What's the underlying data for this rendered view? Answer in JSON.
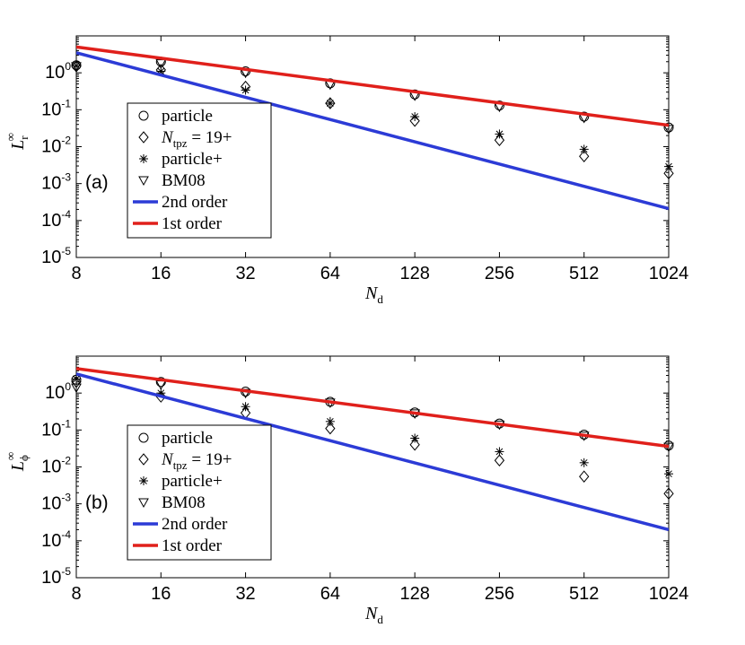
{
  "chart_data": [
    {
      "type": "scatter",
      "panel_label": "(a)",
      "xlabel": {
        "main": "N",
        "sub": "d"
      },
      "ylabel": {
        "main": "L",
        "sub": "r",
        "sup": "∞"
      },
      "x_scale": "log2",
      "y_scale": "log10",
      "xlim": [
        8,
        1024
      ],
      "ylim_exp": [
        -5,
        1
      ],
      "x_ticks": [
        "8",
        "16",
        "32",
        "64",
        "128",
        "256",
        "512",
        "1024"
      ],
      "y_ticks": [
        {
          "base": "10",
          "exp": "-5"
        },
        {
          "base": "10",
          "exp": "-4"
        },
        {
          "base": "10",
          "exp": "-3"
        },
        {
          "base": "10",
          "exp": "-2"
        },
        {
          "base": "10",
          "exp": "-1"
        },
        {
          "base": "10",
          "exp": "0"
        }
      ],
      "legend_position": "lower-left",
      "series": [
        {
          "name": "particle",
          "marker": "circle",
          "x": [
            8,
            16,
            32,
            64,
            128,
            256,
            512,
            1024
          ],
          "y": [
            1.6,
            2.0,
            1.1,
            0.52,
            0.26,
            0.13,
            0.065,
            0.033
          ]
        },
        {
          "name_parts": {
            "pre": "N",
            "sub": "tpz",
            "post": " = 19+"
          },
          "marker": "diamond",
          "x": [
            8,
            16,
            32,
            64,
            128,
            256,
            512,
            1024
          ],
          "y": [
            1.5,
            1.2,
            0.42,
            0.15,
            0.05,
            0.015,
            0.0055,
            0.0019
          ]
        },
        {
          "name": "particle+",
          "marker": "asterisk",
          "x": [
            8,
            16,
            32,
            64,
            128,
            256,
            512,
            1024
          ],
          "y": [
            1.55,
            1.1,
            0.34,
            0.15,
            0.065,
            0.022,
            0.0085,
            0.0029
          ]
        },
        {
          "name": "BM08",
          "marker": "triangle-down",
          "x": [
            8,
            16,
            32,
            64,
            128,
            256,
            512,
            1024
          ],
          "y": [
            1.5,
            1.8,
            1.0,
            0.48,
            0.24,
            0.12,
            0.06,
            0.03
          ]
        },
        {
          "name": "2nd order",
          "marker": "line",
          "color": "#2c3bd6",
          "x": [
            8,
            1024
          ],
          "y": [
            3.5,
            0.00021
          ]
        },
        {
          "name": "1st order",
          "marker": "line",
          "color": "#e0201b",
          "x": [
            8,
            1024
          ],
          "y": [
            5.0,
            0.038
          ]
        }
      ]
    },
    {
      "type": "scatter",
      "panel_label": "(b)",
      "xlabel": {
        "main": "N",
        "sub": "d"
      },
      "ylabel": {
        "main": "L",
        "sub": "ϕ",
        "sup": "∞"
      },
      "x_scale": "log2",
      "y_scale": "log10",
      "xlim": [
        8,
        1024
      ],
      "ylim_exp": [
        -5,
        1
      ],
      "x_ticks": [
        "8",
        "16",
        "32",
        "64",
        "128",
        "256",
        "512",
        "1024"
      ],
      "y_ticks": [
        {
          "base": "10",
          "exp": "-5"
        },
        {
          "base": "10",
          "exp": "-4"
        },
        {
          "base": "10",
          "exp": "-3"
        },
        {
          "base": "10",
          "exp": "-2"
        },
        {
          "base": "10",
          "exp": "-1"
        },
        {
          "base": "10",
          "exp": "0"
        }
      ],
      "legend_position": "lower-left",
      "series": [
        {
          "name": "particle",
          "marker": "circle",
          "x": [
            8,
            16,
            32,
            64,
            128,
            256,
            512,
            1024
          ],
          "y": [
            2.3,
            2.0,
            1.1,
            0.58,
            0.3,
            0.15,
            0.075,
            0.038
          ]
        },
        {
          "name_parts": {
            "pre": "N",
            "sub": "tpz",
            "post": " = 19+"
          },
          "marker": "diamond",
          "x": [
            8,
            16,
            32,
            64,
            128,
            256,
            512,
            1024
          ],
          "y": [
            2.0,
            0.8,
            0.29,
            0.11,
            0.04,
            0.015,
            0.0055,
            0.0019
          ]
        },
        {
          "name": "particle+",
          "marker": "asterisk",
          "x": [
            8,
            16,
            32,
            64,
            128,
            256,
            512,
            1024
          ],
          "y": [
            2.4,
            1.0,
            0.43,
            0.17,
            0.06,
            0.026,
            0.013,
            0.0065
          ]
        },
        {
          "name": "BM08",
          "marker": "triangle-down",
          "x": [
            8,
            16,
            32,
            64,
            128,
            256,
            512,
            1024
          ],
          "y": [
            1.4,
            1.7,
            1.0,
            0.55,
            0.28,
            0.14,
            0.07,
            0.035
          ]
        },
        {
          "name": "2nd order",
          "marker": "line",
          "color": "#2c3bd6",
          "x": [
            8,
            1024
          ],
          "y": [
            3.3,
            0.0002
          ]
        },
        {
          "name": "1st order",
          "marker": "line",
          "color": "#e0201b",
          "x": [
            8,
            1024
          ],
          "y": [
            4.6,
            0.036
          ]
        }
      ]
    }
  ]
}
